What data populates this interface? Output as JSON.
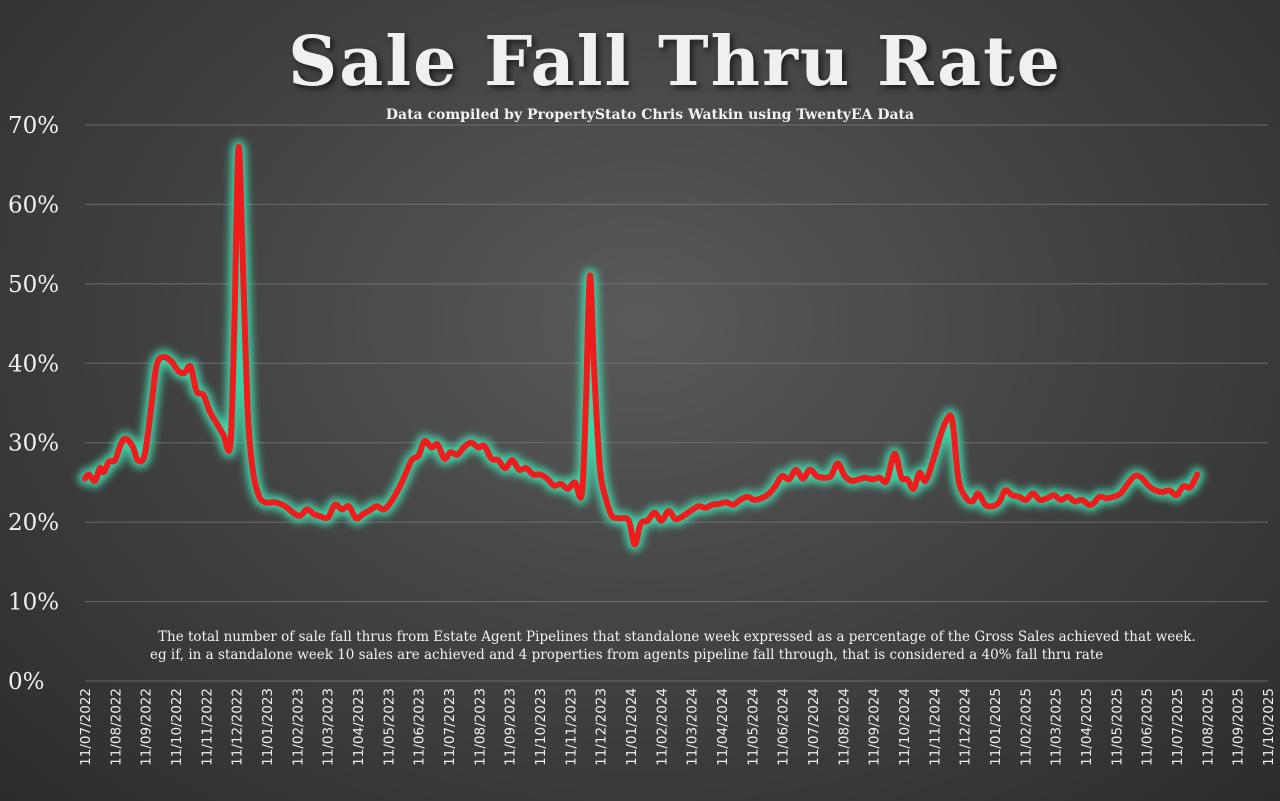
{
  "title": "Sale Fall Thru Rate",
  "subtitle": "Data compiled by PropertyStato Chris Watkin using TwentyEA Data",
  "note": {
    "line1": "The total number of sale fall thrus from Estate Agent Pipelines that standalone week expressed as a percentage of the Gross Sales achieved that week.",
    "line2": "eg if, in a standalone week 10 sales are achieved and 4 properties from agents pipeline fall through, that is considered a 40%  fall thru rate"
  },
  "colors": {
    "line": "#ee1c1c",
    "glow": "#3fe0b0",
    "grid": "#7a7a7a",
    "text": "#f0f0f0"
  },
  "chart_data": {
    "type": "line",
    "title": "Sale Fall Thru Rate",
    "y_ticks": [
      "0%",
      "10%",
      "20%",
      "30%",
      "40%",
      "50%",
      "60%",
      "70%"
    ],
    "ylim": [
      0,
      70
    ],
    "y_unit": "%",
    "grid": true,
    "x_range": [
      "2022-07-11",
      "2025-10-11"
    ],
    "x_ticks": [
      "11/07/2022",
      "11/08/2022",
      "11/09/2022",
      "11/10/2022",
      "11/11/2022",
      "11/12/2022",
      "11/01/2023",
      "11/02/2023",
      "11/03/2023",
      "11/04/2023",
      "11/05/2023",
      "11/06/2023",
      "11/07/2023",
      "11/08/2023",
      "11/09/2023",
      "11/10/2023",
      "11/11/2023",
      "11/12/2023",
      "11/01/2024",
      "11/02/2024",
      "11/03/2024",
      "11/04/2024",
      "11/05/2024",
      "11/06/2024",
      "11/07/2024",
      "11/08/2024",
      "11/09/2024",
      "11/10/2024",
      "11/11/2024",
      "11/12/2024",
      "11/01/2025",
      "11/02/2025",
      "11/03/2025",
      "11/04/2025",
      "11/05/2025",
      "11/06/2025",
      "11/07/2025",
      "11/08/2025",
      "11/09/2025",
      "11/10/2025"
    ],
    "series": [
      {
        "points": [
          [
            "2022-07-11",
            25.5
          ],
          [
            "2022-07-15",
            26
          ],
          [
            "2022-07-21",
            25.2
          ],
          [
            "2022-07-26",
            26.8
          ],
          [
            "2022-07-30",
            26.3
          ],
          [
            "2022-08-04",
            27.6
          ],
          [
            "2022-08-10",
            27.8
          ],
          [
            "2022-08-16",
            29.8
          ],
          [
            "2022-08-21",
            30.5
          ],
          [
            "2022-08-28",
            29.5
          ],
          [
            "2022-09-02",
            27.8
          ],
          [
            "2022-09-09",
            28.5
          ],
          [
            "2022-09-16",
            35
          ],
          [
            "2022-09-21",
            39.8
          ],
          [
            "2022-09-28",
            40.8
          ],
          [
            "2022-10-06",
            40.2
          ],
          [
            "2022-10-13",
            39
          ],
          [
            "2022-10-19",
            38.8
          ],
          [
            "2022-10-25",
            39.6
          ],
          [
            "2022-10-31",
            36.5
          ],
          [
            "2022-11-07",
            36
          ],
          [
            "2022-11-13",
            34
          ],
          [
            "2022-11-20",
            32.5
          ],
          [
            "2022-11-27",
            31
          ],
          [
            "2022-12-04",
            29.8
          ],
          [
            "2022-12-08",
            45
          ],
          [
            "2022-12-12",
            67
          ],
          [
            "2022-12-16",
            55
          ],
          [
            "2022-12-21",
            35
          ],
          [
            "2022-12-26",
            27
          ],
          [
            "2023-01-01",
            23.5
          ],
          [
            "2023-01-08",
            22.5
          ],
          [
            "2023-01-18",
            22.5
          ],
          [
            "2023-01-28",
            22
          ],
          [
            "2023-02-05",
            21.2
          ],
          [
            "2023-02-12",
            20.8
          ],
          [
            "2023-02-19",
            21.6
          ],
          [
            "2023-02-26",
            21
          ],
          [
            "2023-03-05",
            20.7
          ],
          [
            "2023-03-12",
            20.6
          ],
          [
            "2023-03-19",
            22.2
          ],
          [
            "2023-03-26",
            21.6
          ],
          [
            "2023-04-02",
            22
          ],
          [
            "2023-04-09",
            20.5
          ],
          [
            "2023-04-16",
            21
          ],
          [
            "2023-04-23",
            21.5
          ],
          [
            "2023-04-30",
            22
          ],
          [
            "2023-05-07",
            21.6
          ],
          [
            "2023-05-14",
            22.5
          ],
          [
            "2023-05-21",
            24
          ],
          [
            "2023-05-28",
            25.8
          ],
          [
            "2023-06-04",
            27.8
          ],
          [
            "2023-06-11",
            28.4
          ],
          [
            "2023-06-17",
            30.2
          ],
          [
            "2023-06-24",
            29.4
          ],
          [
            "2023-06-30",
            29.8
          ],
          [
            "2023-07-07",
            28
          ],
          [
            "2023-07-13",
            28.8
          ],
          [
            "2023-07-20",
            28.5
          ],
          [
            "2023-07-27",
            29.5
          ],
          [
            "2023-08-03",
            30
          ],
          [
            "2023-08-10",
            29.4
          ],
          [
            "2023-08-16",
            29.6
          ],
          [
            "2023-08-23",
            28
          ],
          [
            "2023-08-30",
            27.8
          ],
          [
            "2023-09-06",
            26.8
          ],
          [
            "2023-09-13",
            27.8
          ],
          [
            "2023-09-20",
            26.6
          ],
          [
            "2023-09-27",
            26.8
          ],
          [
            "2023-10-04",
            26
          ],
          [
            "2023-10-11",
            26
          ],
          [
            "2023-10-18",
            25.5
          ],
          [
            "2023-10-25",
            24.6
          ],
          [
            "2023-11-01",
            24.8
          ],
          [
            "2023-11-08",
            24.2
          ],
          [
            "2023-11-15",
            25
          ],
          [
            "2023-11-22",
            23.6
          ],
          [
            "2023-11-26",
            35
          ],
          [
            "2023-11-30",
            51
          ],
          [
            "2023-12-04",
            40
          ],
          [
            "2023-12-10",
            27
          ],
          [
            "2023-12-16",
            23
          ],
          [
            "2023-12-22",
            20.8
          ],
          [
            "2023-12-30",
            20.5
          ],
          [
            "2024-01-08",
            20.2
          ],
          [
            "2024-01-14",
            17.2
          ],
          [
            "2024-01-20",
            19.8
          ],
          [
            "2024-01-27",
            20.2
          ],
          [
            "2024-02-03",
            21.2
          ],
          [
            "2024-02-10",
            20.2
          ],
          [
            "2024-02-17",
            21.4
          ],
          [
            "2024-02-24",
            20.4
          ],
          [
            "2024-03-03",
            20.8
          ],
          [
            "2024-03-10",
            21.4
          ],
          [
            "2024-03-18",
            22
          ],
          [
            "2024-03-25",
            21.8
          ],
          [
            "2024-04-01",
            22.2
          ],
          [
            "2024-04-08",
            22.3
          ],
          [
            "2024-04-15",
            22.5
          ],
          [
            "2024-04-22",
            22.2
          ],
          [
            "2024-04-29",
            22.8
          ],
          [
            "2024-05-06",
            23.2
          ],
          [
            "2024-05-13",
            22.8
          ],
          [
            "2024-05-20",
            23
          ],
          [
            "2024-05-27",
            23.5
          ],
          [
            "2024-06-03",
            24.5
          ],
          [
            "2024-06-10",
            25.8
          ],
          [
            "2024-06-17",
            25.4
          ],
          [
            "2024-06-24",
            26.6
          ],
          [
            "2024-07-01",
            25.5
          ],
          [
            "2024-07-08",
            26.6
          ],
          [
            "2024-07-15",
            25.8
          ],
          [
            "2024-07-22",
            25.6
          ],
          [
            "2024-07-29",
            25.8
          ],
          [
            "2024-08-05",
            27.4
          ],
          [
            "2024-08-12",
            25.8
          ],
          [
            "2024-08-19",
            25.2
          ],
          [
            "2024-08-26",
            25.4
          ],
          [
            "2024-09-02",
            25.6
          ],
          [
            "2024-09-09",
            25.4
          ],
          [
            "2024-09-16",
            25.6
          ],
          [
            "2024-09-23",
            25.2
          ],
          [
            "2024-10-01",
            28.6
          ],
          [
            "2024-10-08",
            25.6
          ],
          [
            "2024-10-14",
            25.4
          ],
          [
            "2024-10-20",
            24.2
          ],
          [
            "2024-10-26",
            26.2
          ],
          [
            "2024-11-01",
            25.2
          ],
          [
            "2024-11-08",
            27.5
          ],
          [
            "2024-11-15",
            30.5
          ],
          [
            "2024-11-22",
            32.8
          ],
          [
            "2024-11-28",
            32.8
          ],
          [
            "2024-12-04",
            25.5
          ],
          [
            "2024-12-11",
            23.2
          ],
          [
            "2024-12-18",
            22.6
          ],
          [
            "2024-12-24",
            23.6
          ],
          [
            "2024-12-31",
            22.2
          ],
          [
            "2025-01-07",
            22
          ],
          [
            "2025-01-14",
            22.5
          ],
          [
            "2025-01-20",
            24
          ],
          [
            "2025-01-27",
            23.4
          ],
          [
            "2025-02-03",
            23.2
          ],
          [
            "2025-02-10",
            22.8
          ],
          [
            "2025-02-17",
            23.6
          ],
          [
            "2025-02-24",
            22.8
          ],
          [
            "2025-03-03",
            23
          ],
          [
            "2025-03-10",
            23.4
          ],
          [
            "2025-03-17",
            22.8
          ],
          [
            "2025-03-24",
            23.2
          ],
          [
            "2025-03-31",
            22.6
          ],
          [
            "2025-04-07",
            22.8
          ],
          [
            "2025-04-14",
            22.2
          ],
          [
            "2025-04-19",
            22.4
          ],
          [
            "2025-04-25",
            23.2
          ],
          [
            "2025-05-02",
            23
          ],
          [
            "2025-05-09",
            23.2
          ],
          [
            "2025-05-16",
            23.6
          ],
          [
            "2025-05-23",
            24.8
          ],
          [
            "2025-05-30",
            25.8
          ],
          [
            "2025-06-06",
            25.6
          ],
          [
            "2025-06-13",
            24.6
          ],
          [
            "2025-06-20",
            24
          ],
          [
            "2025-06-27",
            23.8
          ],
          [
            "2025-07-04",
            24
          ],
          [
            "2025-07-11",
            23.4
          ],
          [
            "2025-07-18",
            24.5
          ],
          [
            "2025-07-25",
            24.4
          ],
          [
            "2025-08-01",
            26
          ]
        ]
      }
    ]
  }
}
